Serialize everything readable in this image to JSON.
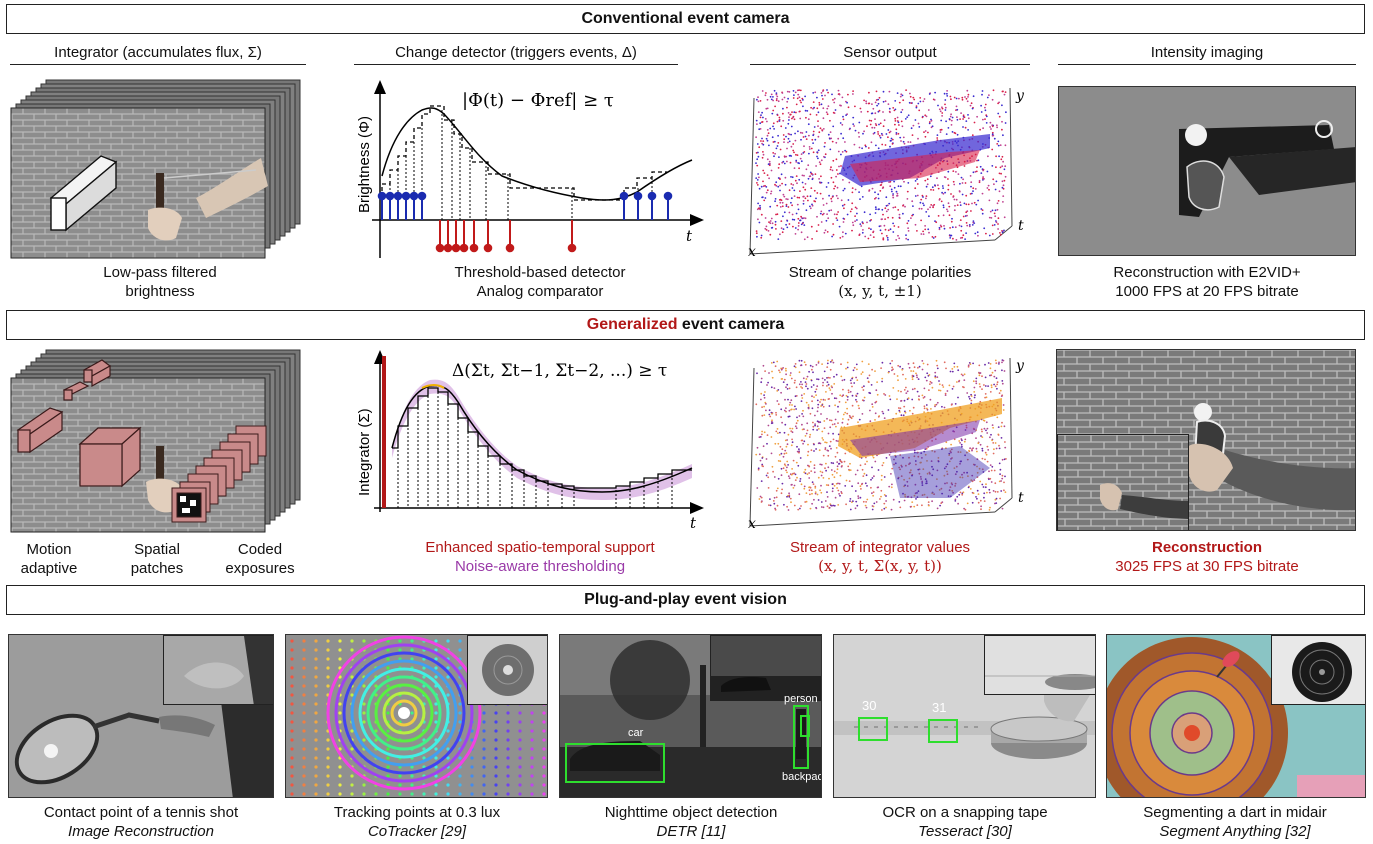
{
  "conventional": {
    "banner": "Conventional event camera",
    "col1_head": "Integrator (accumulates flux, Σ)",
    "col2_head": "Change detector (triggers events, Δ)",
    "col3_head": "Sensor output",
    "col4_head": "Intensity imaging",
    "col1_cap": [
      "Low-pass filtered",
      "brightness"
    ],
    "col2_equation": "|Φ(t) − Φref| ≥ τ",
    "col2_ylabel": "Brightness (Φ)",
    "col2_xlabel": "t",
    "col2_cap": [
      "Threshold-based detector",
      "Analog comparator"
    ],
    "col3_cap": "Stream of change polarities",
    "col3_math": "(x, y, t, ±1)",
    "col3_axes": {
      "x": "x",
      "y": "y",
      "t": "t"
    },
    "col4_cap": [
      "Reconstruction with E2VID+",
      "1000 FPS at 20 FPS bitrate"
    ]
  },
  "generalized": {
    "banner_red": "Generalized",
    "banner_rest": " event camera",
    "col1_caps": [
      [
        "Motion",
        "adaptive"
      ],
      [
        "Spatial",
        "patches"
      ],
      [
        "Coded",
        "exposures"
      ]
    ],
    "col2_equation": "Δ(Σt, Σt−1, Σt−2, ...) ≥ τ",
    "col2_ylabel": "Integrator (Σ)",
    "col2_xlabel": "t",
    "col2_cap_red": "Enhanced spatio-temporal support",
    "col2_cap_purple": "Noise-aware thresholding",
    "col3_cap": "Stream of integrator values",
    "col3_math": "(x, y, t, Σ(x, y, t))",
    "col3_axes": {
      "x": "x",
      "y": "y",
      "t": "t"
    },
    "col4_cap_bold": "Reconstruction",
    "col4_cap": "3025 FPS at 30 FPS bitrate"
  },
  "plug": {
    "banner": "Plug-and-play event vision",
    "items": [
      {
        "title": "Contact point of a tennis shot",
        "method": "Image Reconstruction"
      },
      {
        "title": "Tracking points at 0.3 lux",
        "method": "CoTracker [29]"
      },
      {
        "title": "Nighttime object detection",
        "method": "DETR [11]"
      },
      {
        "title": "OCR on a snapping tape",
        "method": "Tesseract [30]"
      },
      {
        "title": "Segmenting a dart in midair",
        "method": "Segment Anything [32]"
      }
    ],
    "detection_labels": [
      "car",
      "person",
      "backpack"
    ],
    "ocr_labels": [
      "30",
      "31"
    ]
  },
  "colors": {
    "red": "#b21818",
    "blue": "#1a2bb0",
    "purple": "#9a3aa8",
    "green": "#2ede2e"
  }
}
